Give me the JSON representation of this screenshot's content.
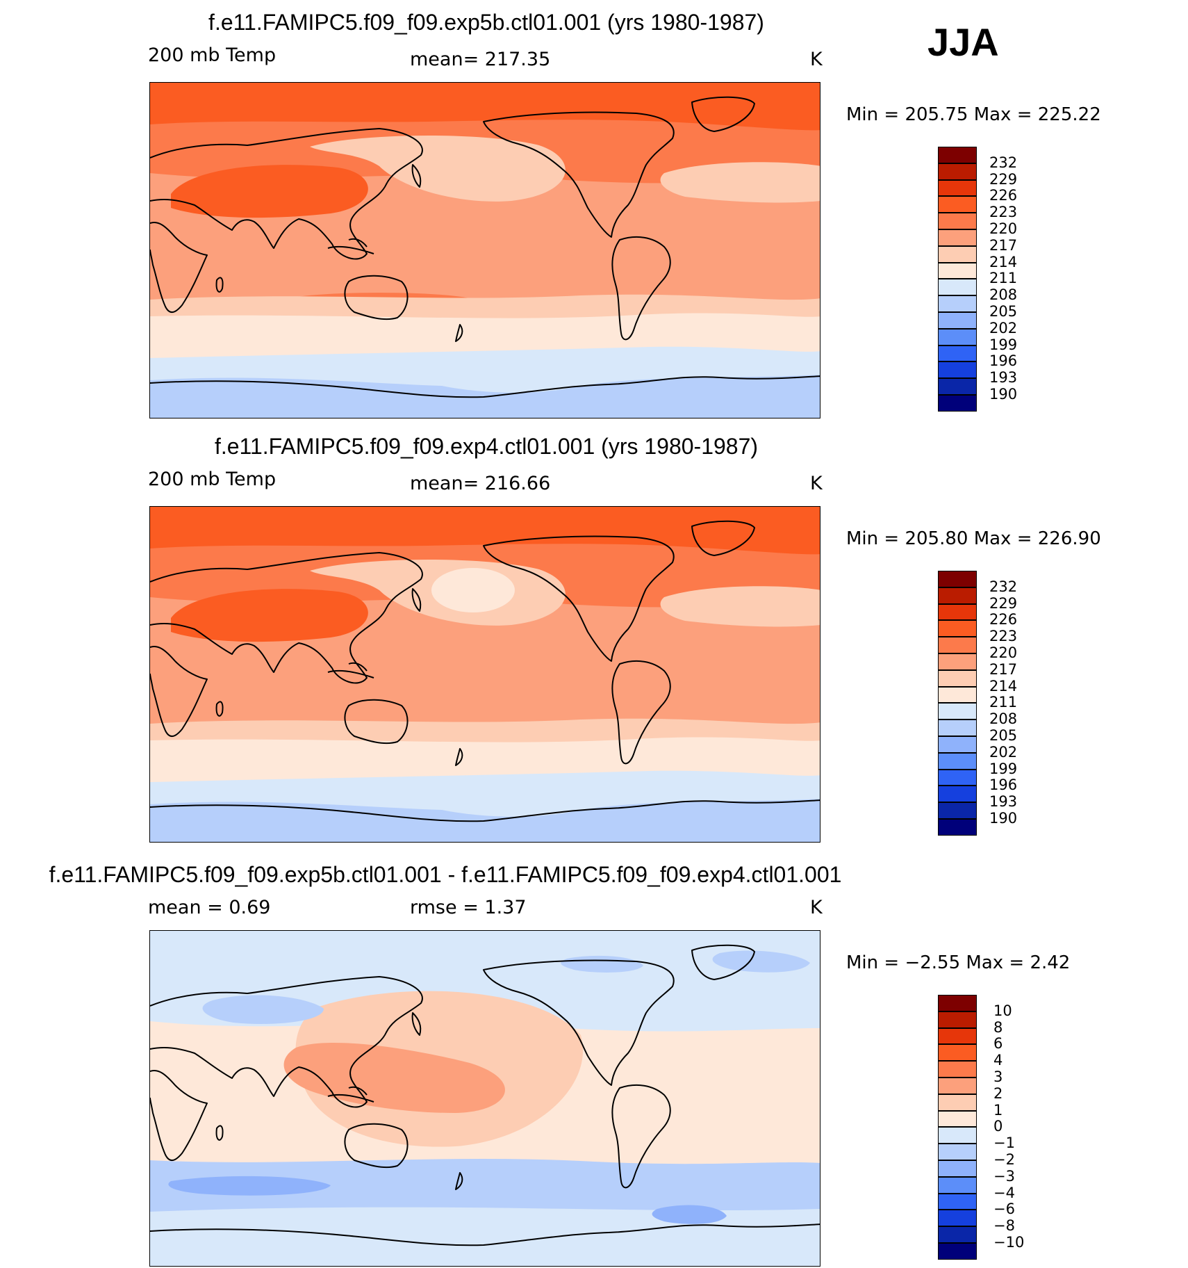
{
  "season": "JJA",
  "panels": [
    {
      "id": "top",
      "title": "f.e11.FAMIPC5.f09_f09.exp5b.ctl01.001 (yrs 1980-1987)",
      "left_label": "200 mb Temp",
      "center_label": "mean=  217.35",
      "units": "K",
      "min_max": "Min  =  205.75  Max  =  225.22",
      "regions": [
        {
          "kind": "arctic_band_dark",
          "color": "#E6360A"
        },
        {
          "kind": "arctic_band",
          "color": "#FB5C22"
        },
        {
          "kind": "nh_midlat",
          "color": "#FC7A4B"
        },
        {
          "kind": "tropics",
          "color": "#FCA07C"
        },
        {
          "kind": "pacific_warm_cell",
          "color": "#FDCDB3"
        },
        {
          "kind": "atlantic_warm_cell",
          "color": "#FDCDB3"
        },
        {
          "kind": "tibet_high",
          "color": "#FB5C22"
        },
        {
          "kind": "australia_band",
          "color": "#FC7A4B"
        },
        {
          "kind": "sh_midlat_1",
          "color": "#FDCDB3"
        },
        {
          "kind": "sh_midlat_2",
          "color": "#FEE8D9"
        },
        {
          "kind": "sh_cold_1",
          "color": "#D8E8FA"
        },
        {
          "kind": "sh_cold_2",
          "color": "#B6CFFB"
        }
      ],
      "colorbar": {
        "colors": [
          "#7D0000",
          "#BA1C00",
          "#E6360A",
          "#FB5C22",
          "#FC7A4B",
          "#FCA07C",
          "#FDCDB3",
          "#FEE8D9",
          "#D8E8FA",
          "#B6CFFB",
          "#8FB2FB",
          "#5C8EF9",
          "#2F63F5",
          "#1540DE",
          "#0A26A8",
          "#00007A"
        ],
        "ticks": [
          "232",
          "229",
          "226",
          "223",
          "220",
          "217",
          "214",
          "211",
          "208",
          "205",
          "202",
          "199",
          "196",
          "193",
          "190"
        ]
      }
    },
    {
      "id": "middle",
      "title": "f.e11.FAMIPC5.f09_f09.exp4.ctl01.001 (yrs 1980-1987)",
      "left_label": "200 mb Temp",
      "center_label": "mean=  216.66",
      "units": "K",
      "min_max": "Min  =  205.80  Max  =  226.90",
      "regions": [
        {
          "kind": "arctic_band_dark",
          "color": "#E6360A"
        },
        {
          "kind": "arctic_band",
          "color": "#FB5C22"
        },
        {
          "kind": "nh_midlat",
          "color": "#FC7A4B"
        },
        {
          "kind": "tropics",
          "color": "#FCA07C"
        },
        {
          "kind": "pacific_warm_cell",
          "color": "#FDCDB3"
        },
        {
          "kind": "pacific_core",
          "color": "#FEE8D9"
        },
        {
          "kind": "atlantic_warm_cell",
          "color": "#FDCDB3"
        },
        {
          "kind": "tibet_high",
          "color": "#FB5C22"
        },
        {
          "kind": "sh_midlat_1",
          "color": "#FDCDB3"
        },
        {
          "kind": "sh_midlat_2",
          "color": "#FEE8D9"
        },
        {
          "kind": "sh_cold_1",
          "color": "#D8E8FA"
        },
        {
          "kind": "sh_cold_2",
          "color": "#B6CFFB"
        }
      ],
      "colorbar": {
        "colors": [
          "#7D0000",
          "#BA1C00",
          "#E6360A",
          "#FB5C22",
          "#FC7A4B",
          "#FCA07C",
          "#FDCDB3",
          "#FEE8D9",
          "#D8E8FA",
          "#B6CFFB",
          "#8FB2FB",
          "#5C8EF9",
          "#2F63F5",
          "#1540DE",
          "#0A26A8",
          "#00007A"
        ],
        "ticks": [
          "232",
          "229",
          "226",
          "223",
          "220",
          "217",
          "214",
          "211",
          "208",
          "205",
          "202",
          "199",
          "196",
          "193",
          "190"
        ]
      }
    },
    {
      "id": "bottom",
      "title": "f.e11.FAMIPC5.f09_f09.exp5b.ctl01.001 - f.e11.FAMIPC5.f09_f09.exp4.ctl01.001",
      "left_label": "mean =     0.69",
      "center_label": "rmse =      1.37",
      "units": "K",
      "min_max": "Min  =    −2.55  Max  =      2.42",
      "regions": [
        {
          "kind": "base",
          "color": "#D8E8FA"
        },
        {
          "kind": "tropics",
          "color": "#FEE8D9"
        },
        {
          "kind": "pacific_warm",
          "color": "#FDCDB3"
        },
        {
          "kind": "maritime_warm",
          "color": "#FCA07C"
        },
        {
          "kind": "nh_cold_patches",
          "color": "#B6CFFB"
        },
        {
          "kind": "sh_cold_band",
          "color": "#B6CFFB"
        },
        {
          "kind": "sh_cold_core",
          "color": "#8FB2FB"
        }
      ],
      "colorbar": {
        "colors": [
          "#7D0000",
          "#BA1C00",
          "#E6360A",
          "#FB5C22",
          "#FC7A4B",
          "#FCA07C",
          "#FDCDB3",
          "#FEE8D9",
          "#D8E8FA",
          "#B6CFFB",
          "#8FB2FB",
          "#5C8EF9",
          "#2F63F5",
          "#1540DE",
          "#0A26A8",
          "#00007A"
        ],
        "ticks": [
          "10",
          "8",
          "6",
          "4",
          "3",
          "2",
          "1",
          "0",
          "−1",
          "−2",
          "−3",
          "−4",
          "−6",
          "−8",
          "−10"
        ]
      }
    }
  ]
}
